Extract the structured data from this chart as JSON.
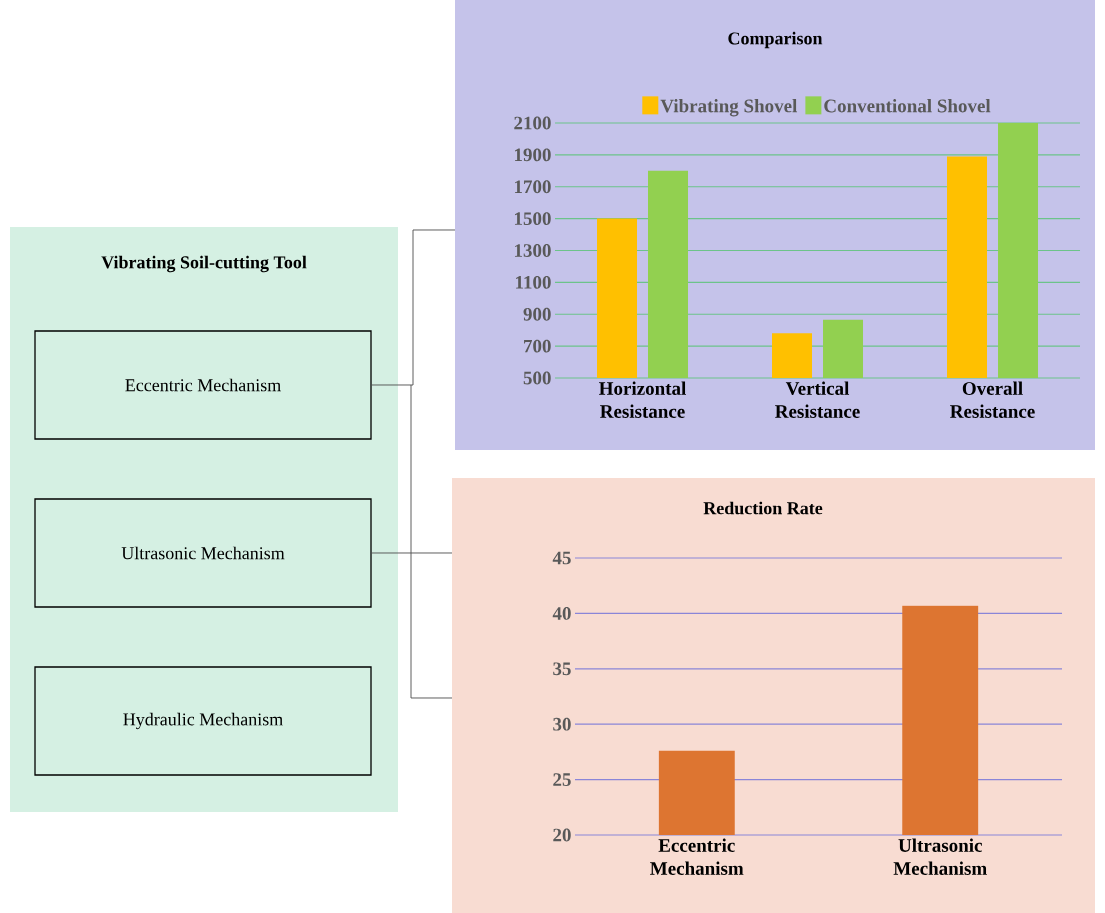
{
  "chart_data": [
    {
      "type": "other",
      "title": "Vibrating Soil-cutting Tool",
      "annotations": [
        "Eccentric Mechanism",
        "Ultrasonic Mechanism",
        "Hydraulic Mechanism"
      ]
    },
    {
      "type": "bar",
      "title": "Comparison",
      "categories": [
        "Horizontal Resistance",
        "Vertical Resistance",
        "Overall Resistance"
      ],
      "series": [
        {
          "name": "Vibrating Shovel",
          "color": "#ffc000",
          "values": [
            1500,
            780,
            1890
          ]
        },
        {
          "name": "Conventional Shovel",
          "color": "#92d050",
          "values": [
            1800,
            865,
            2100
          ]
        }
      ],
      "ylim": [
        500,
        2100
      ],
      "yticks": [
        500,
        700,
        900,
        1100,
        1300,
        1500,
        1700,
        1900,
        2100
      ],
      "grid": "y",
      "legend": "top"
    },
    {
      "type": "bar",
      "title": "Reduction Rate",
      "categories": [
        "Eccentric Mechanism",
        "Ultrasonic Mechanism"
      ],
      "values": [
        27.6,
        40.7
      ],
      "color": "#dd7531",
      "ylim": [
        20,
        45
      ],
      "yticks": [
        20,
        25,
        30,
        35,
        40,
        45
      ],
      "grid": "y"
    }
  ]
}
